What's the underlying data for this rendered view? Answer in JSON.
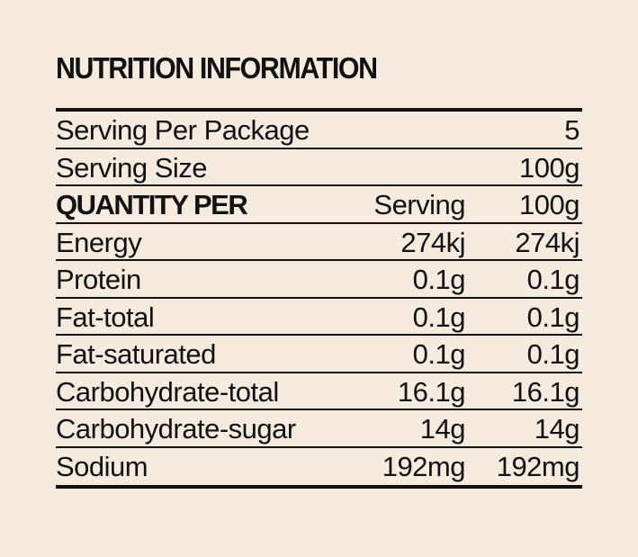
{
  "title": "NUTRITION INFORMATION",
  "serving_per_package": {
    "label": "Serving Per Package",
    "value": "5"
  },
  "serving_size": {
    "label": "Serving Size",
    "value": "100g"
  },
  "header": {
    "label": "QUANTITY PER",
    "col1": "Serving",
    "col2": "100g"
  },
  "nutrients": [
    {
      "label": "Energy",
      "per_serving": "274kj",
      "per_100g": "274kj"
    },
    {
      "label": "Protein",
      "per_serving": "0.1g",
      "per_100g": "0.1g"
    },
    {
      "label": "Fat-total",
      "per_serving": "0.1g",
      "per_100g": "0.1g"
    },
    {
      "label": "Fat-saturated",
      "per_serving": "0.1g",
      "per_100g": "0.1g"
    },
    {
      "label": "Carbohydrate-total",
      "per_serving": "16.1g",
      "per_100g": "16.1g"
    },
    {
      "label": "Carbohydrate-sugar",
      "per_serving": "14g",
      "per_100g": "14g"
    },
    {
      "label": "Sodium",
      "per_serving": "192mg",
      "per_100g": "192mg"
    }
  ],
  "colors": {
    "background": "#f5ecdf",
    "text": "#111111"
  }
}
